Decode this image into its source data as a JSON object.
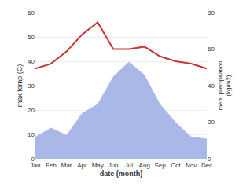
{
  "chart_data": {
    "type": "line",
    "categories": [
      "Jan",
      "Feb",
      "Mar",
      "Apr",
      "May",
      "Jun",
      "Jul",
      "Aug",
      "Sep",
      "Oct",
      "Nov",
      "Dec"
    ],
    "series": [
      {
        "type": "area",
        "color": "#aab8e8",
        "axis": "y2",
        "values": [
          12,
          17,
          13,
          25,
          30,
          45,
          53,
          46,
          30,
          20,
          12,
          11
        ]
      },
      {
        "type": "line",
        "color": "#cc3333",
        "values": [
          37,
          39,
          44,
          51,
          56,
          45,
          45,
          46,
          42,
          40,
          39,
          37
        ]
      }
    ],
    "xlabel": "date (month)",
    "ylabel": "max temp (C)",
    "y2label": "med. precipitation\n(kg/m2)",
    "ylim": [
      0,
      60
    ],
    "yticks": [
      0,
      10,
      20,
      30,
      40,
      50,
      60
    ],
    "y2lim": [
      0,
      80
    ],
    "y2ticks": [
      0,
      20,
      40,
      60,
      80
    ],
    "grid": true
  }
}
